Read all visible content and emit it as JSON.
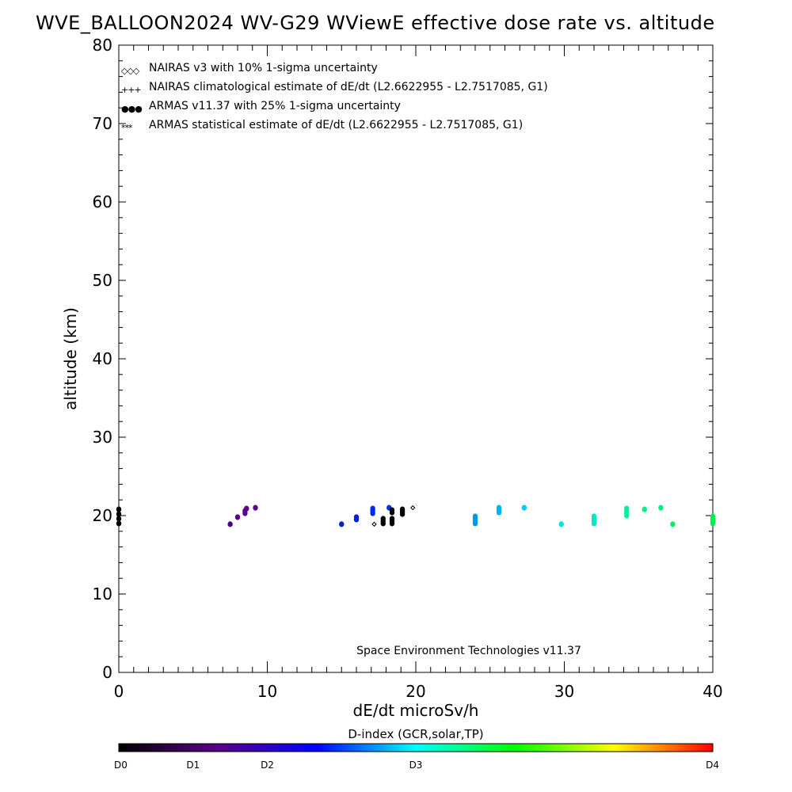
{
  "chart_data": {
    "type": "scatter",
    "title": "WVE_BALLOON2024 WV-G29 WViewE effective dose rate vs. altitude",
    "xlabel": "dE/dt microSv/h",
    "ylabel": "altitude (km)",
    "xlim": [
      0,
      40
    ],
    "ylim": [
      0,
      80
    ],
    "x_ticks": [
      0,
      10,
      20,
      30,
      40
    ],
    "y_ticks": [
      0,
      10,
      20,
      30,
      40,
      50,
      60,
      70,
      80
    ],
    "grid": false,
    "legend_position": "top-left",
    "legend": [
      {
        "symbol": "◇◇◇",
        "label": "NAIRAS v3 with 10% 1-sigma uncertainty",
        "color": "#000000"
      },
      {
        "symbol": "+++",
        "label": "NAIRAS climatological estimate of dE/dt (L2.6622955 - L2.7517085, G1)",
        "color": "#000000"
      },
      {
        "symbol": "●●●",
        "label": "ARMAS v11.37 with 25% 1-sigma uncertainty",
        "color": "#0000dd"
      },
      {
        "symbol": "***",
        "label": "ARMAS statistical estimate of dE/dt (L2.6622955 - L2.7517085, G1)",
        "color": "#000000"
      }
    ],
    "annotation": "Space Environment Technologies v11.37",
    "colorbar": {
      "title": "D-index (GCR,solar,TP)",
      "ticks": [
        {
          "label": "D0",
          "position": 0.0
        },
        {
          "label": "D1",
          "position": 0.125
        },
        {
          "label": "D2",
          "position": 0.25
        },
        {
          "label": "D3",
          "position": 0.5
        },
        {
          "label": "D4",
          "position": 1.0
        }
      ],
      "stops": [
        "#000000",
        "#5a008a",
        "#0000ff",
        "#00ffff",
        "#00ff00",
        "#ffff00",
        "#ff0000"
      ]
    },
    "series": [
      {
        "marker": "dot",
        "points": [
          {
            "x": 0.0,
            "y": 19.0,
            "color": "#000000"
          },
          {
            "x": 0.0,
            "y": 19.6,
            "color": "#000000"
          },
          {
            "x": 0.0,
            "y": 20.2,
            "color": "#000000"
          },
          {
            "x": 0.0,
            "y": 20.8,
            "color": "#000000"
          },
          {
            "x": 7.5,
            "y": 18.9,
            "color": "#4b0082"
          },
          {
            "x": 8.0,
            "y": 19.8,
            "color": "#5a0090"
          },
          {
            "x": 8.5,
            "y": 20.3,
            "color": "#5a0090"
          },
          {
            "x": 8.5,
            "y": 20.6,
            "color": "#5a0090"
          },
          {
            "x": 8.6,
            "y": 20.9,
            "color": "#5a0090"
          },
          {
            "x": 9.2,
            "y": 21.0,
            "color": "#5a0090"
          },
          {
            "x": 15.0,
            "y": 18.9,
            "color": "#0020d0"
          },
          {
            "x": 16.0,
            "y": 19.5,
            "color": "#0020e0"
          },
          {
            "x": 16.0,
            "y": 19.8,
            "color": "#0020e0"
          },
          {
            "x": 17.1,
            "y": 20.3,
            "color": "#0028f0"
          },
          {
            "x": 17.1,
            "y": 20.6,
            "color": "#0028f0"
          },
          {
            "x": 17.1,
            "y": 20.9,
            "color": "#0028f0"
          },
          {
            "x": 18.2,
            "y": 21.0,
            "color": "#0030f8"
          },
          {
            "x": 17.8,
            "y": 19.0,
            "color": "#000000"
          },
          {
            "x": 17.8,
            "y": 19.3,
            "color": "#000000"
          },
          {
            "x": 17.8,
            "y": 19.6,
            "color": "#000000"
          },
          {
            "x": 18.4,
            "y": 19.0,
            "color": "#000000"
          },
          {
            "x": 18.4,
            "y": 19.3,
            "color": "#000000"
          },
          {
            "x": 18.4,
            "y": 19.6,
            "color": "#000000"
          },
          {
            "x": 18.4,
            "y": 20.4,
            "color": "#000000"
          },
          {
            "x": 18.4,
            "y": 20.7,
            "color": "#000000"
          },
          {
            "x": 19.1,
            "y": 20.2,
            "color": "#000000"
          },
          {
            "x": 19.1,
            "y": 20.5,
            "color": "#000000"
          },
          {
            "x": 19.1,
            "y": 20.8,
            "color": "#000000"
          },
          {
            "x": 24.0,
            "y": 19.0,
            "color": "#0098e8"
          },
          {
            "x": 24.0,
            "y": 19.3,
            "color": "#0098e8"
          },
          {
            "x": 24.0,
            "y": 19.6,
            "color": "#0098e8"
          },
          {
            "x": 24.0,
            "y": 19.9,
            "color": "#0098e8"
          },
          {
            "x": 25.6,
            "y": 20.4,
            "color": "#00b4f0"
          },
          {
            "x": 25.6,
            "y": 20.7,
            "color": "#00b4f0"
          },
          {
            "x": 25.6,
            "y": 21.0,
            "color": "#00b4f0"
          },
          {
            "x": 27.3,
            "y": 21.0,
            "color": "#00ccf8"
          },
          {
            "x": 29.8,
            "y": 18.9,
            "color": "#00e0ec"
          },
          {
            "x": 32.0,
            "y": 19.0,
            "color": "#00e8c0"
          },
          {
            "x": 32.0,
            "y": 19.3,
            "color": "#00e8c0"
          },
          {
            "x": 32.0,
            "y": 19.6,
            "color": "#00e8c0"
          },
          {
            "x": 32.0,
            "y": 19.9,
            "color": "#00e8c0"
          },
          {
            "x": 34.2,
            "y": 20.0,
            "color": "#00f0a0"
          },
          {
            "x": 34.2,
            "y": 20.3,
            "color": "#00f0a0"
          },
          {
            "x": 34.2,
            "y": 20.6,
            "color": "#00f0a0"
          },
          {
            "x": 34.2,
            "y": 20.9,
            "color": "#00f0a0"
          },
          {
            "x": 35.4,
            "y": 20.8,
            "color": "#00f090"
          },
          {
            "x": 36.5,
            "y": 21.0,
            "color": "#00f080"
          },
          {
            "x": 37.3,
            "y": 18.9,
            "color": "#00ee60"
          },
          {
            "x": 40.0,
            "y": 19.0,
            "color": "#00ee50"
          },
          {
            "x": 40.0,
            "y": 19.3,
            "color": "#00ee50"
          },
          {
            "x": 40.0,
            "y": 19.6,
            "color": "#00ee50"
          },
          {
            "x": 40.0,
            "y": 19.9,
            "color": "#00ee50"
          }
        ]
      },
      {
        "marker": "diamond",
        "points": [
          {
            "x": 17.2,
            "y": 18.9,
            "color": "#000000"
          },
          {
            "x": 19.8,
            "y": 21.0,
            "color": "#000000"
          }
        ]
      }
    ]
  }
}
